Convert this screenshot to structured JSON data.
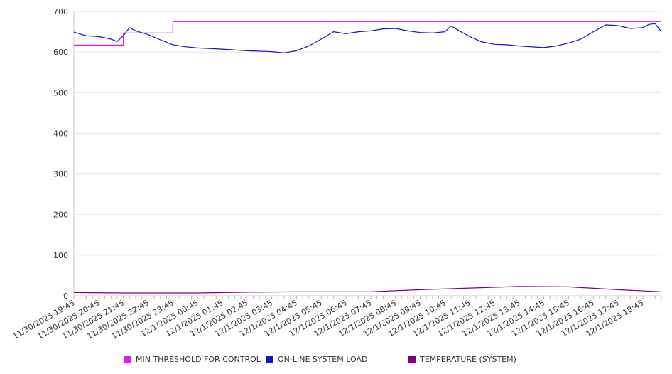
{
  "chart_data": {
    "type": "line",
    "ylim": [
      0,
      700
    ],
    "y_ticks": [
      "0",
      "100",
      "200",
      "300",
      "400",
      "500",
      "600",
      "700"
    ],
    "x_tick_labels": [
      "11/30/2025 19:45",
      "11/30/2025 20:45",
      "11/30/2025 21:45",
      "11/30/2025 22:45",
      "11/30/2025 23:45",
      "12/1/2025 00:45",
      "12/1/2025 01:45",
      "12/1/2025 02:45",
      "12/1/2025 03:45",
      "12/1/2025 04:45",
      "12/1/2025 05:45",
      "12/1/2025 06:45",
      "12/1/2025 07:45",
      "12/1/2025 08:45",
      "12/1/2025 09:45",
      "12/1/2025 10:45",
      "12/1/2025 11:45",
      "12/1/2025 12:45",
      "12/1/2025 13:45",
      "12/1/2025 14:45",
      "12/1/2025 15:45",
      "12/1/2025 16:45",
      "12/1/2025 17:45",
      "12/1/2025 18:45"
    ],
    "grid": true,
    "legend_position": "bottom",
    "series": [
      {
        "name": "MIN THRESHOLD FOR CONTROL",
        "color": "#e619e6",
        "points": [
          [
            "11/30/2025 19:45",
            617
          ],
          [
            "11/30/2025 21:45",
            617
          ],
          [
            "11/30/2025 21:45",
            647
          ],
          [
            "11/30/2025 23:45",
            647
          ],
          [
            "11/30/2025 23:45",
            675
          ],
          [
            "12/1/2025 19:30",
            675
          ]
        ]
      },
      {
        "name": "ON-LINE SYSTEM LOAD",
        "color": "#1414c8",
        "points": [
          [
            "11/30/2025 19:45",
            649
          ],
          [
            "11/30/2025 20:15",
            640
          ],
          [
            "11/30/2025 20:45",
            638
          ],
          [
            "11/30/2025 21:15",
            632
          ],
          [
            "11/30/2025 21:30",
            626
          ],
          [
            "11/30/2025 21:45",
            640
          ],
          [
            "11/30/2025 22:00",
            660
          ],
          [
            "11/30/2025 22:15",
            652
          ],
          [
            "11/30/2025 22:45",
            643
          ],
          [
            "11/30/2025 23:15",
            630
          ],
          [
            "11/30/2025 23:45",
            618
          ],
          [
            "12/1/2025 00:15",
            613
          ],
          [
            "12/1/2025 00:45",
            610
          ],
          [
            "12/1/2025 01:45",
            607
          ],
          [
            "12/1/2025 02:45",
            603
          ],
          [
            "12/1/2025 03:45",
            601
          ],
          [
            "12/1/2025 04:15",
            598
          ],
          [
            "12/1/2025 04:45",
            603
          ],
          [
            "12/1/2025 05:15",
            615
          ],
          [
            "12/1/2025 05:45",
            632
          ],
          [
            "12/1/2025 06:15",
            650
          ],
          [
            "12/1/2025 06:45",
            645
          ],
          [
            "12/1/2025 07:15",
            650
          ],
          [
            "12/1/2025 07:45",
            652
          ],
          [
            "12/1/2025 08:15",
            657
          ],
          [
            "12/1/2025 08:45",
            658
          ],
          [
            "12/1/2025 09:15",
            652
          ],
          [
            "12/1/2025 09:45",
            648
          ],
          [
            "12/1/2025 10:15",
            647
          ],
          [
            "12/1/2025 10:45",
            650
          ],
          [
            "12/1/2025 11:00",
            664
          ],
          [
            "12/1/2025 11:15",
            655
          ],
          [
            "12/1/2025 11:45",
            638
          ],
          [
            "12/1/2025 12:15",
            625
          ],
          [
            "12/1/2025 12:45",
            619
          ],
          [
            "12/1/2025 13:15",
            618
          ],
          [
            "12/1/2025 13:45",
            615
          ],
          [
            "12/1/2025 14:45",
            611
          ],
          [
            "12/1/2025 15:15",
            615
          ],
          [
            "12/1/2025 15:45",
            622
          ],
          [
            "12/1/2025 16:15",
            632
          ],
          [
            "12/1/2025 16:45",
            650
          ],
          [
            "12/1/2025 17:15",
            667
          ],
          [
            "12/1/2025 17:45",
            665
          ],
          [
            "12/1/2025 18:15",
            658
          ],
          [
            "12/1/2025 18:45",
            660
          ],
          [
            "12/1/2025 19:00",
            668
          ],
          [
            "12/1/2025 19:15",
            670
          ],
          [
            "12/1/2025 19:30",
            650
          ]
        ]
      },
      {
        "name": "TEMPERATURE (SYSTEM)",
        "color": "#800080",
        "points": [
          [
            "11/30/2025 19:45",
            8
          ],
          [
            "11/30/2025 21:45",
            7
          ],
          [
            "12/1/2025 00:45",
            7
          ],
          [
            "12/1/2025 02:45",
            9
          ],
          [
            "12/1/2025 04:45",
            10
          ],
          [
            "12/1/2025 07:45",
            10
          ],
          [
            "12/1/2025 09:45",
            15
          ],
          [
            "12/1/2025 11:45",
            19
          ],
          [
            "12/1/2025 13:45",
            23
          ],
          [
            "12/1/2025 15:45",
            22
          ],
          [
            "12/1/2025 17:45",
            15
          ],
          [
            "12/1/2025 19:30",
            10
          ]
        ]
      }
    ]
  }
}
